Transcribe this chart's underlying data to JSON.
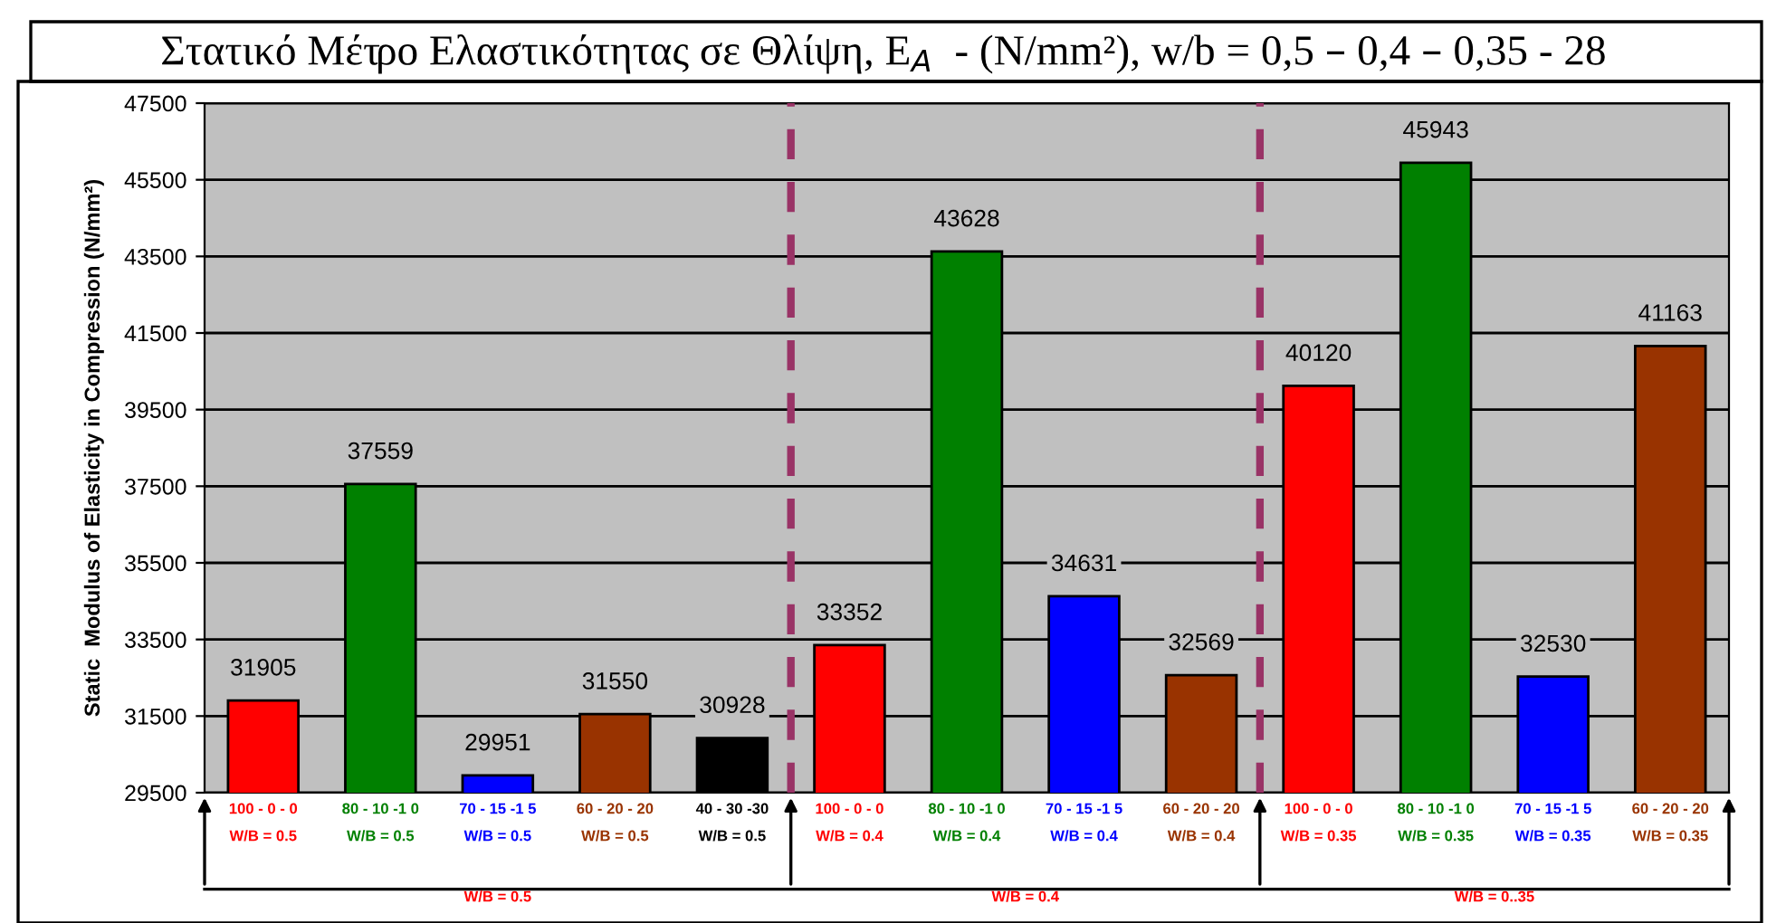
{
  "chart_data": {
    "type": "bar",
    "title": "Στατικό Μέτρο Ελαστικότητας σε Θλίψη, E$_{A}$  - (N/mm²), w/b = 0,5 – 0,4 – 0,35 - 28",
    "ylabel": "Static  Modulus of Elasticity in Compression (N/mm²)",
    "categories": [
      "100 - 0 - 0\nW/B = 0.5",
      "80 - 10 -1 0\nW/B = 0.5",
      "70 - 15 -1 5\nW/B = 0.5",
      "60 - 20 - 20\nW/B = 0.5",
      "40 - 30 -30\nW/B = 0.5",
      "100 - 0 - 0\nW/B = 0.4",
      "80 - 10 -1 0\nW/B = 0.4",
      "70 - 15 -1 5\nW/B = 0.4",
      "60 - 20 - 20\nW/B = 0.4",
      "100 - 0 - 0\nW/B = 0.35",
      "80 - 10 -1 0\nW/B = 0.35",
      "70 - 15 -1 5\nW/B = 0.35",
      "60 - 20 - 20\nW/B = 0.35"
    ],
    "values": [
      31905,
      37559,
      29951,
      31550,
      30928,
      33352,
      43628,
      34631,
      32569,
      40120,
      45943,
      32530,
      41163
    ],
    "colors": [
      "#ff0000",
      "#008000",
      "#0000ff",
      "#993300",
      "#000000",
      "#ff0000",
      "#008000",
      "#0000ff",
      "#993300",
      "#ff0000",
      "#008000",
      "#0000ff",
      "#993300"
    ],
    "data_labels": true,
    "ylim": [
      29500,
      47500
    ],
    "yticks": [
      29500,
      31500,
      33500,
      35500,
      37500,
      39500,
      41500,
      43500,
      45500,
      47500
    ],
    "grid": "y",
    "annotations": [
      "W/B = 0.5",
      "W/B = 0.4",
      "W/B = 0..35"
    ]
  }
}
